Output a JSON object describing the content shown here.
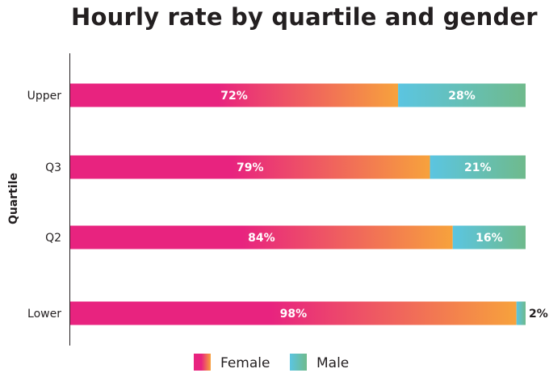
{
  "chart_data": {
    "type": "bar",
    "orientation": "horizontal",
    "stacked": true,
    "title": "Hourly rate by quartile and gender",
    "ylabel": "Quartile",
    "xlabel": "",
    "xlim": [
      0,
      100
    ],
    "grid": false,
    "legend_position": "bottom",
    "categories": [
      "Upper",
      "Q3",
      "Q2",
      "Lower"
    ],
    "series": [
      {
        "name": "Female",
        "values": [
          72,
          79,
          84,
          98
        ],
        "labels": [
          "72%",
          "79%",
          "84%",
          "98%"
        ],
        "color_start": "#e8237f",
        "color_end": "#f7a23c"
      },
      {
        "name": "Male",
        "values": [
          28,
          21,
          16,
          2
        ],
        "labels": [
          "28%",
          "21%",
          "16%",
          "2%"
        ],
        "color_start": "#5bc5e1",
        "color_end": "#6fba8c"
      }
    ]
  }
}
